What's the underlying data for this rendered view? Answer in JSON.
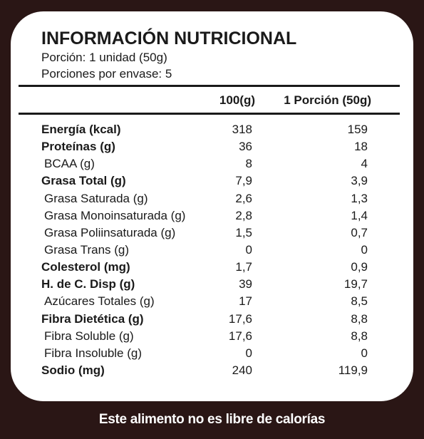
{
  "label": {
    "title": "INFORMACIÓN NUTRICIONAL",
    "serving_size": "Porción: 1 unidad (50g)",
    "servings_per_package": "Porciones por envase: 5",
    "columns": [
      "100(g)",
      "1 Porción (50g)"
    ],
    "rows": [
      {
        "name": "Energía (kcal)",
        "per_100g": "318",
        "per_portion": "159",
        "bold": true
      },
      {
        "name": "Proteínas (g)",
        "per_100g": "36",
        "per_portion": "18",
        "bold": true
      },
      {
        "name": "BCAA (g)",
        "per_100g": "8",
        "per_portion": "4",
        "bold": false
      },
      {
        "name": "Grasa Total (g)",
        "per_100g": "7,9",
        "per_portion": "3,9",
        "bold": true
      },
      {
        "name": "Grasa Saturada (g)",
        "per_100g": "2,6",
        "per_portion": "1,3",
        "bold": false
      },
      {
        "name": "Grasa Monoinsaturada (g)",
        "per_100g": "2,8",
        "per_portion": "1,4",
        "bold": false
      },
      {
        "name": "Grasa Poliinsaturada (g)",
        "per_100g": "1,5",
        "per_portion": "0,7",
        "bold": false
      },
      {
        "name": "Grasa Trans (g)",
        "per_100g": "0",
        "per_portion": "0",
        "bold": false
      },
      {
        "name": "Colesterol (mg)",
        "per_100g": "1,7",
        "per_portion": "0,9",
        "bold": true
      },
      {
        "name": "H. de C. Disp (g)",
        "per_100g": "39",
        "per_portion": "19,7",
        "bold": true
      },
      {
        "name": "Azúcares Totales (g)",
        "per_100g": "17",
        "per_portion": "8,5",
        "bold": false
      },
      {
        "name": "Fibra Dietética (g)",
        "per_100g": "17,6",
        "per_portion": "8,8",
        "bold": true
      },
      {
        "name": "Fibra Soluble (g)",
        "per_100g": "17,6",
        "per_portion": "8,8",
        "bold": false
      },
      {
        "name": "Fibra Insoluble (g)",
        "per_100g": "0",
        "per_portion": "0",
        "bold": false
      },
      {
        "name": "Sodio (mg)",
        "per_100g": "240",
        "per_portion": "119,9",
        "bold": true
      }
    ]
  },
  "footer": {
    "text": "Este alimento no es libre de calorías"
  },
  "colors": {
    "background": "#2a1615",
    "panel": "#ffffff",
    "text": "#1a1a1a"
  }
}
